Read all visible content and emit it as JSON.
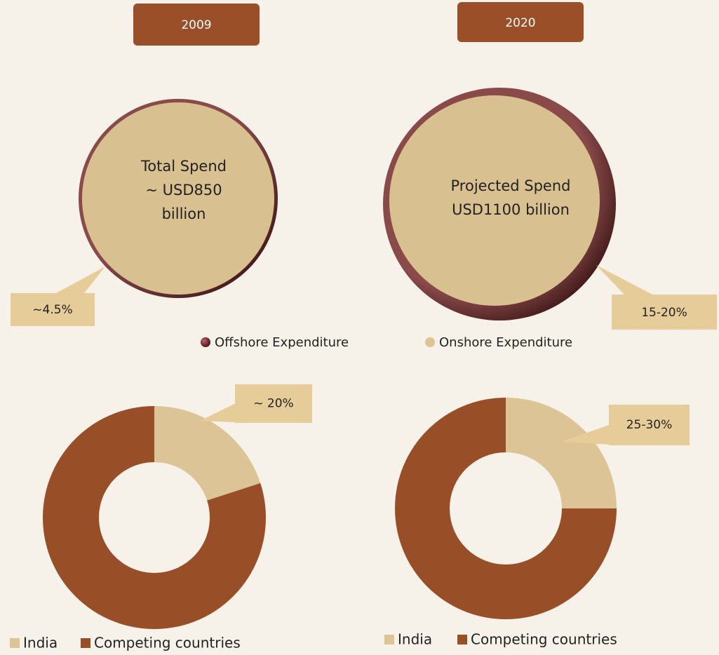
{
  "headers": [
    "2009",
    "2020"
  ],
  "circles": [
    {
      "lines": [
        "Total Spend",
        "~ USD850",
        "billion"
      ],
      "callout": "~4.5%"
    },
    {
      "lines": [
        "Projected Spend",
        "USD1100 billion"
      ],
      "callout": "15-20%"
    }
  ],
  "legend": [
    "Offshore Expenditure",
    "Onshore Expenditure"
  ],
  "chart_data": [
    {
      "type": "donut",
      "categories": [
        "India",
        "Competing countries"
      ],
      "values": [
        20,
        80
      ],
      "value_labels": [
        "~ 20%",
        null
      ],
      "colors": [
        "#dcc496",
        "#984f28"
      ]
    },
    {
      "type": "donut",
      "categories": [
        "India",
        "Competing countries"
      ],
      "values": [
        25,
        75
      ],
      "value_labels": [
        "25-30%",
        null
      ],
      "colors": [
        "#dcc496",
        "#984f28"
      ]
    }
  ]
}
